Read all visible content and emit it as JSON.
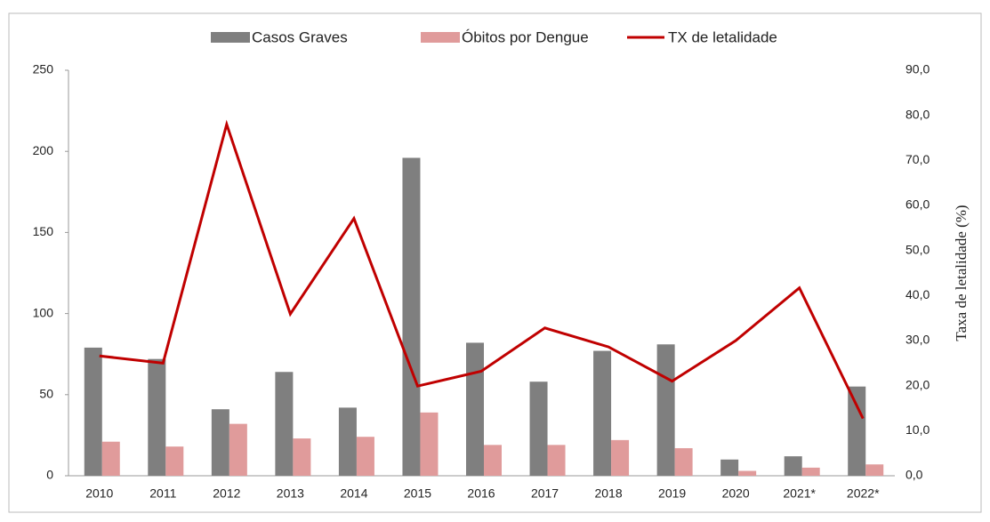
{
  "chart_data": {
    "type": "bar-line",
    "categories": [
      "2010",
      "2011",
      "2012",
      "2013",
      "2014",
      "2015",
      "2016",
      "2017",
      "2018",
      "2019",
      "2020",
      "2021*",
      "2022*"
    ],
    "series": [
      {
        "name": "Casos Graves",
        "color": "#7f7f7f",
        "values": [
          79,
          72,
          41,
          64,
          42,
          196,
          82,
          58,
          77,
          81,
          10,
          12,
          55
        ]
      },
      {
        "name": "Óbitos por Dengue",
        "color": "#e09b9b",
        "values": [
          21,
          18,
          32,
          23,
          24,
          39,
          19,
          19,
          22,
          17,
          3,
          5,
          7
        ]
      },
      {
        "name": "TX de letalidade",
        "color": "#c00000",
        "axis": "y2",
        "values": [
          26.6,
          25.0,
          78.0,
          35.9,
          57.1,
          19.9,
          23.2,
          32.8,
          28.6,
          21.0,
          30.0,
          41.7,
          12.7
        ]
      }
    ],
    "ylim": [
      0,
      250
    ],
    "yticks": [
      0,
      50,
      100,
      150,
      200,
      250
    ],
    "y2lim": [
      0,
      90
    ],
    "y2ticks": [
      {
        "value": 0,
        "label": "0,0"
      },
      {
        "value": 10,
        "label": "10,0"
      },
      {
        "value": 20,
        "label": "20,0"
      },
      {
        "value": 30,
        "label": "30,0"
      },
      {
        "value": 40,
        "label": "40,0"
      },
      {
        "value": 50,
        "label": "50,0"
      },
      {
        "value": 60,
        "label": "60,0"
      },
      {
        "value": 70,
        "label": "70,0"
      },
      {
        "value": 80,
        "label": "80,0"
      },
      {
        "value": 90,
        "label": "90,0"
      }
    ],
    "y2label": "Taxa de letalidade (%)",
    "legend": "top"
  }
}
